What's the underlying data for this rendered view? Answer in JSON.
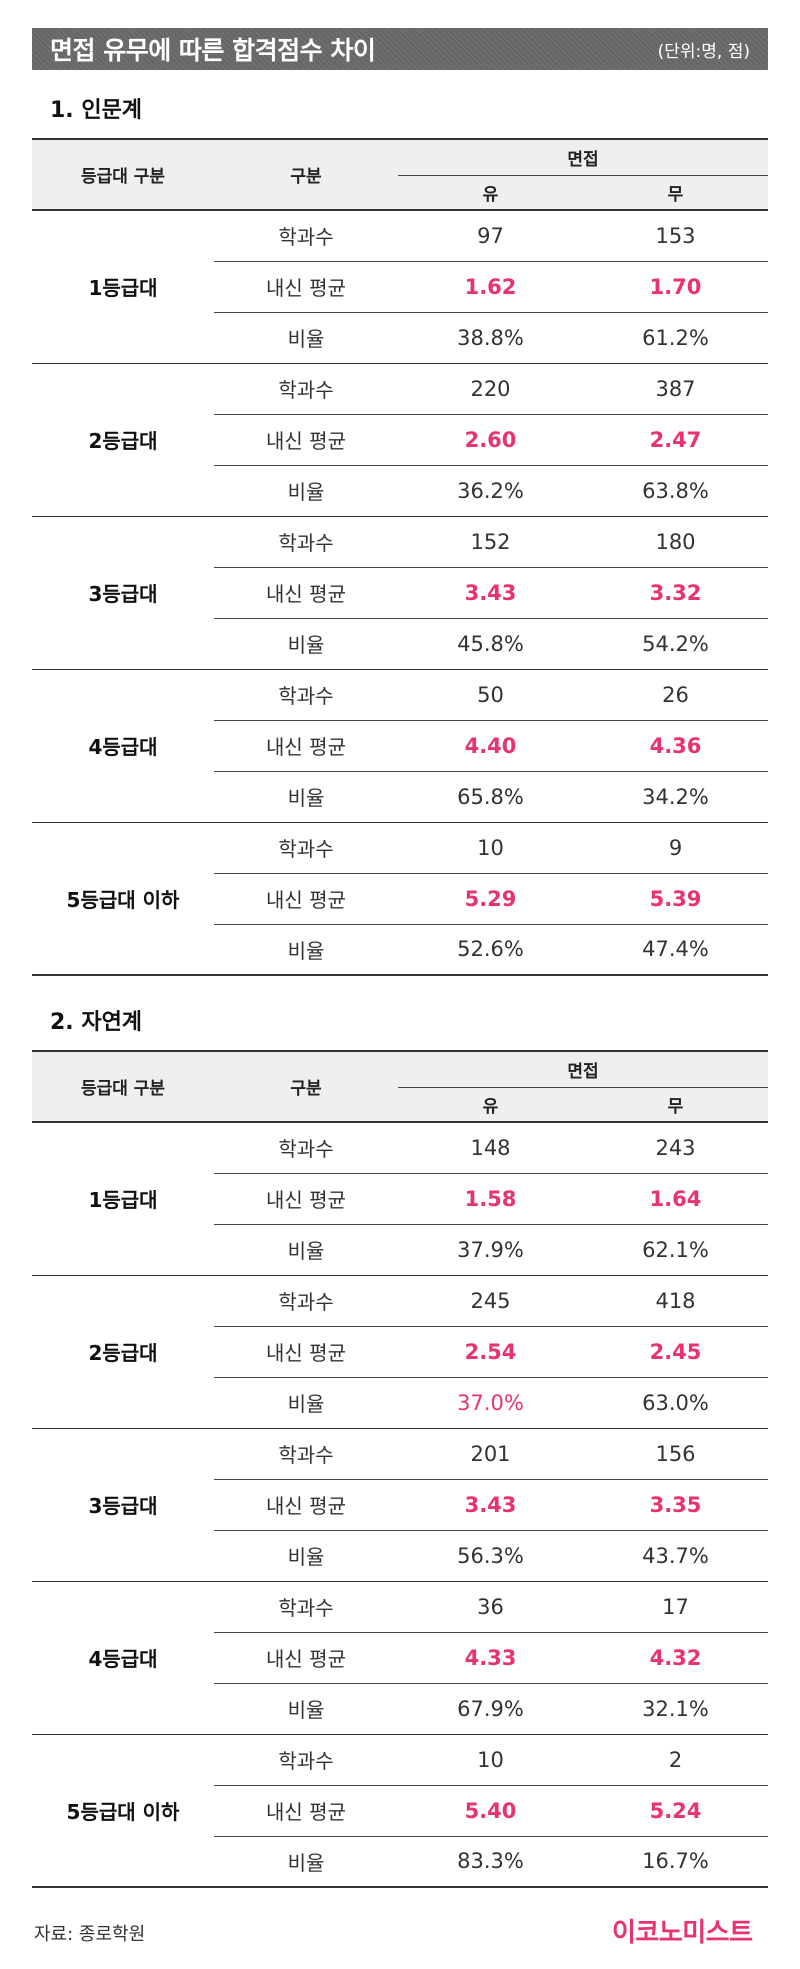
{
  "title": "면접 유무에 따른 합격점수 차이",
  "unit": "(단위:명, 점)",
  "header": {
    "grade_col": "등급대 구분",
    "category_col": "구분",
    "interview": "면접",
    "yes": "유",
    "no": "무"
  },
  "sections": [
    {
      "title": "1. 인문계",
      "groups": [
        {
          "grade": "1등급대",
          "rows": [
            {
              "label": "학과수",
              "yes": "97",
              "no": "153"
            },
            {
              "label": "내신 평균",
              "yes": "1.62",
              "no": "1.70"
            },
            {
              "label": "비율",
              "yes": "38.8%",
              "no": "61.2%"
            }
          ]
        },
        {
          "grade": "2등급대",
          "rows": [
            {
              "label": "학과수",
              "yes": "220",
              "no": "387"
            },
            {
              "label": "내신 평균",
              "yes": "2.60",
              "no": "2.47"
            },
            {
              "label": "비율",
              "yes": "36.2%",
              "no": "63.8%"
            }
          ]
        },
        {
          "grade": "3등급대",
          "rows": [
            {
              "label": "학과수",
              "yes": "152",
              "no": "180"
            },
            {
              "label": "내신 평균",
              "yes": "3.43",
              "no": "3.32"
            },
            {
              "label": "비율",
              "yes": "45.8%",
              "no": "54.2%"
            }
          ]
        },
        {
          "grade": "4등급대",
          "rows": [
            {
              "label": "학과수",
              "yes": "50",
              "no": "26"
            },
            {
              "label": "내신 평균",
              "yes": "4.40",
              "no": "4.36"
            },
            {
              "label": "비율",
              "yes": "65.8%",
              "no": "34.2%"
            }
          ]
        },
        {
          "grade": "5등급대 이하",
          "rows": [
            {
              "label": "학과수",
              "yes": "10",
              "no": "9"
            },
            {
              "label": "내신 평균",
              "yes": "5.29",
              "no": "5.39"
            },
            {
              "label": "비율",
              "yes": "52.6%",
              "no": "47.4%"
            }
          ]
        }
      ]
    },
    {
      "title": "2. 자연계",
      "groups": [
        {
          "grade": "1등급대",
          "rows": [
            {
              "label": "학과수",
              "yes": "148",
              "no": "243"
            },
            {
              "label": "내신 평균",
              "yes": "1.58",
              "no": "1.64"
            },
            {
              "label": "비율",
              "yes": "37.9%",
              "no": "62.1%"
            }
          ]
        },
        {
          "grade": "2등급대",
          "rows": [
            {
              "label": "학과수",
              "yes": "245",
              "no": "418"
            },
            {
              "label": "내신 평균",
              "yes": "2.54",
              "no": "2.45"
            },
            {
              "label": "비율",
              "yes": "37.0%",
              "no": "63.0%"
            }
          ]
        },
        {
          "grade": "3등급대",
          "rows": [
            {
              "label": "학과수",
              "yes": "201",
              "no": "156"
            },
            {
              "label": "내신 평균",
              "yes": "3.43",
              "no": "3.35"
            },
            {
              "label": "비율",
              "yes": "56.3%",
              "no": "43.7%"
            }
          ]
        },
        {
          "grade": "4등급대",
          "rows": [
            {
              "label": "학과수",
              "yes": "36",
              "no": "17"
            },
            {
              "label": "내신 평균",
              "yes": "4.33",
              "no": "4.32"
            },
            {
              "label": "비율",
              "yes": "67.9%",
              "no": "32.1%"
            }
          ]
        },
        {
          "grade": "5등급대 이하",
          "rows": [
            {
              "label": "학과수",
              "yes": "10",
              "no": "2"
            },
            {
              "label": "내신 평균",
              "yes": "5.40",
              "no": "5.24"
            },
            {
              "label": "비율",
              "yes": "83.3%",
              "no": "16.7%"
            }
          ]
        }
      ]
    }
  ],
  "source": "자료: 종로학원",
  "brand": "이코노미스트",
  "colors": {
    "accent": "#e8336d",
    "title_bg": "#666666",
    "header_bg": "#efefef"
  }
}
